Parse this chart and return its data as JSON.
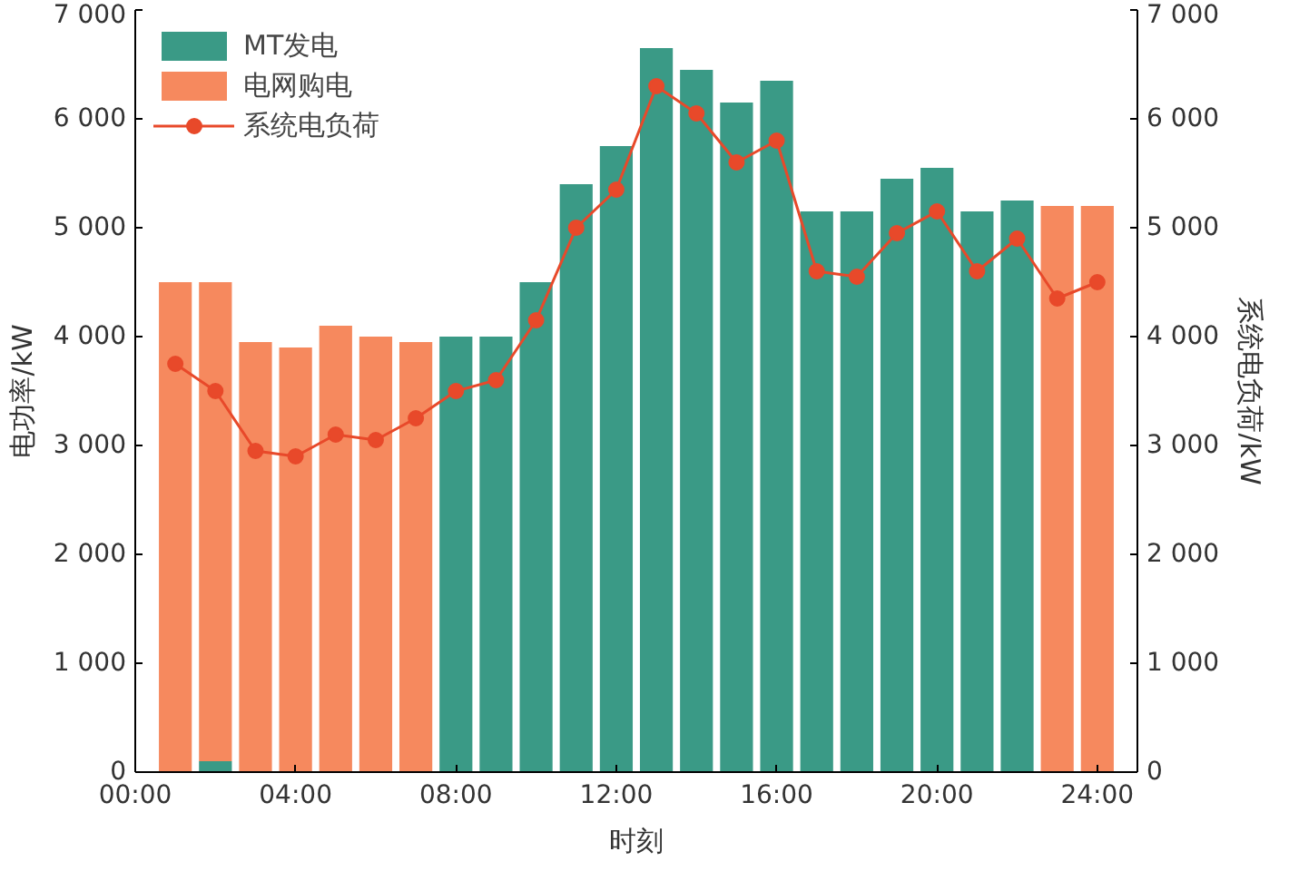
{
  "chart_data": {
    "type": "bar",
    "stacked": true,
    "xlabel": "时刻",
    "ylabel": "电功率/kW",
    "y2label": "系统电负荷/kW",
    "x": [
      1,
      2,
      3,
      4,
      5,
      6,
      7,
      8,
      9,
      10,
      11,
      12,
      13,
      14,
      15,
      16,
      17,
      18,
      19,
      20,
      21,
      22,
      23,
      24
    ],
    "xlim": [
      0,
      25
    ],
    "xticks": [
      {
        "value": 0,
        "label": "00:00"
      },
      {
        "value": 4,
        "label": "04:00"
      },
      {
        "value": 8,
        "label": "08:00"
      },
      {
        "value": 12,
        "label": "12:00"
      },
      {
        "value": 16,
        "label": "16:00"
      },
      {
        "value": 20,
        "label": "20:00"
      },
      {
        "value": 24,
        "label": "24:00"
      }
    ],
    "ylim": [
      0,
      7000
    ],
    "yticks": [
      {
        "value": 0,
        "label": "0"
      },
      {
        "value": 1000,
        "label": "1 000"
      },
      {
        "value": 2000,
        "label": "2 000"
      },
      {
        "value": 3000,
        "label": "3 000"
      },
      {
        "value": 4000,
        "label": "4 000"
      },
      {
        "value": 5000,
        "label": "5 000"
      },
      {
        "value": 6000,
        "label": "6 000"
      },
      {
        "value": 7000,
        "label": "7 000"
      }
    ],
    "y2lim": [
      0,
      7000
    ],
    "y2ticks": [
      {
        "value": 0,
        "label": "0"
      },
      {
        "value": 1000,
        "label": "1 000"
      },
      {
        "value": 2000,
        "label": "2 000"
      },
      {
        "value": 3000,
        "label": "3 000"
      },
      {
        "value": 4000,
        "label": "4 000"
      },
      {
        "value": 5000,
        "label": "5 000"
      },
      {
        "value": 6000,
        "label": "6 000"
      },
      {
        "value": 7000,
        "label": "7 000"
      }
    ],
    "series": [
      {
        "name": "MT发电",
        "color": "#3a9a86",
        "values": [
          0,
          100,
          0,
          0,
          0,
          0,
          0,
          4000,
          4000,
          4500,
          5400,
          5750,
          6650,
          6450,
          6150,
          6350,
          5150,
          5150,
          5450,
          5550,
          5150,
          5250,
          0,
          0
        ]
      },
      {
        "name": "电网购电",
        "color": "#f6895e",
        "values": [
          4500,
          4400,
          3950,
          3900,
          4100,
          4000,
          3950,
          0,
          0,
          0,
          0,
          0,
          0,
          0,
          0,
          0,
          0,
          0,
          0,
          0,
          0,
          0,
          5200,
          5200
        ]
      },
      {
        "name": "系统电负荷",
        "type": "line",
        "axis": "y2",
        "color": "#e8492a",
        "marker": "circle",
        "values": [
          3750,
          3500,
          2950,
          2900,
          3100,
          3050,
          3250,
          3500,
          3600,
          4150,
          5000,
          5350,
          6300,
          6050,
          5600,
          5800,
          4600,
          4550,
          4950,
          5150,
          4600,
          4900,
          4350,
          4500
        ]
      }
    ],
    "legend": "top left",
    "grid": false
  }
}
